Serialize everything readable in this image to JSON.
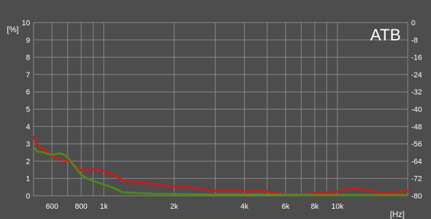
{
  "chart_data": {
    "type": "line",
    "title": "",
    "brand_label": "ATB",
    "y_unit_left": "[%]",
    "x_unit": "[Hz]",
    "x_scale": "log",
    "x_range": [
      500,
      20000
    ],
    "ylim": [
      0,
      10
    ],
    "y_right_range": [
      -80,
      0
    ],
    "x_ticks": [
      {
        "value": 600,
        "label": "600"
      },
      {
        "value": 800,
        "label": "800"
      },
      {
        "value": 1000,
        "label": "1k"
      },
      {
        "value": 2000,
        "label": "2k"
      },
      {
        "value": 4000,
        "label": "4k"
      },
      {
        "value": 6000,
        "label": "6k"
      },
      {
        "value": 8000,
        "label": "8k"
      },
      {
        "value": 10000,
        "label": "10k"
      }
    ],
    "x_minor_gridlines": [
      500,
      700,
      900,
      3000,
      5000,
      7000,
      9000,
      20000
    ],
    "y_ticks_left": [
      "0",
      "1",
      "2",
      "3",
      "4",
      "5",
      "6",
      "7",
      "8",
      "9",
      "10"
    ],
    "y_ticks_right": [
      "-80",
      "-72",
      "-64",
      "-56",
      "-48",
      "-40",
      "-32",
      "-24",
      "-16",
      "-8",
      "0"
    ],
    "grid": true,
    "series": [
      {
        "color": "#d01919",
        "points": [
          [
            500,
            3.4
          ],
          [
            510,
            3.1
          ],
          [
            530,
            2.8
          ],
          [
            560,
            2.65
          ],
          [
            600,
            2.3
          ],
          [
            650,
            2.1
          ],
          [
            700,
            2.05
          ],
          [
            750,
            1.75
          ],
          [
            800,
            1.5
          ],
          [
            850,
            1.5
          ],
          [
            900,
            1.55
          ],
          [
            950,
            1.5
          ],
          [
            1000,
            1.45
          ],
          [
            1100,
            1.2
          ],
          [
            1200,
            0.9
          ],
          [
            1400,
            0.8
          ],
          [
            1600,
            0.7
          ],
          [
            1800,
            0.6
          ],
          [
            2000,
            0.55
          ],
          [
            2200,
            0.55
          ],
          [
            2500,
            0.45
          ],
          [
            2800,
            0.35
          ],
          [
            3000,
            0.3
          ],
          [
            3500,
            0.35
          ],
          [
            3800,
            0.3
          ],
          [
            4000,
            0.25
          ],
          [
            4500,
            0.3
          ],
          [
            5000,
            0.25
          ],
          [
            5500,
            0.15
          ],
          [
            6000,
            0.1
          ],
          [
            7000,
            0.1
          ],
          [
            8000,
            0.15
          ],
          [
            9000,
            0.2
          ],
          [
            10000,
            0.25
          ],
          [
            11000,
            0.4
          ],
          [
            12000,
            0.45
          ],
          [
            13000,
            0.35
          ],
          [
            15000,
            0.2
          ],
          [
            17000,
            0.2
          ],
          [
            18500,
            0.25
          ],
          [
            20000,
            0.3
          ]
        ]
      },
      {
        "color": "#4b8a16",
        "points": [
          [
            500,
            2.8
          ],
          [
            520,
            2.55
          ],
          [
            550,
            2.5
          ],
          [
            600,
            2.35
          ],
          [
            650,
            2.45
          ],
          [
            680,
            2.35
          ],
          [
            700,
            2.2
          ],
          [
            750,
            1.7
          ],
          [
            800,
            1.2
          ],
          [
            850,
            1.0
          ],
          [
            900,
            0.85
          ],
          [
            1000,
            0.65
          ],
          [
            1100,
            0.45
          ],
          [
            1200,
            0.2
          ],
          [
            1400,
            0.15
          ],
          [
            1600,
            0.12
          ],
          [
            2000,
            0.1
          ],
          [
            3000,
            0.08
          ],
          [
            5000,
            0.08
          ],
          [
            8000,
            0.05
          ],
          [
            12000,
            0.05
          ],
          [
            20000,
            0.05
          ]
        ]
      }
    ]
  }
}
